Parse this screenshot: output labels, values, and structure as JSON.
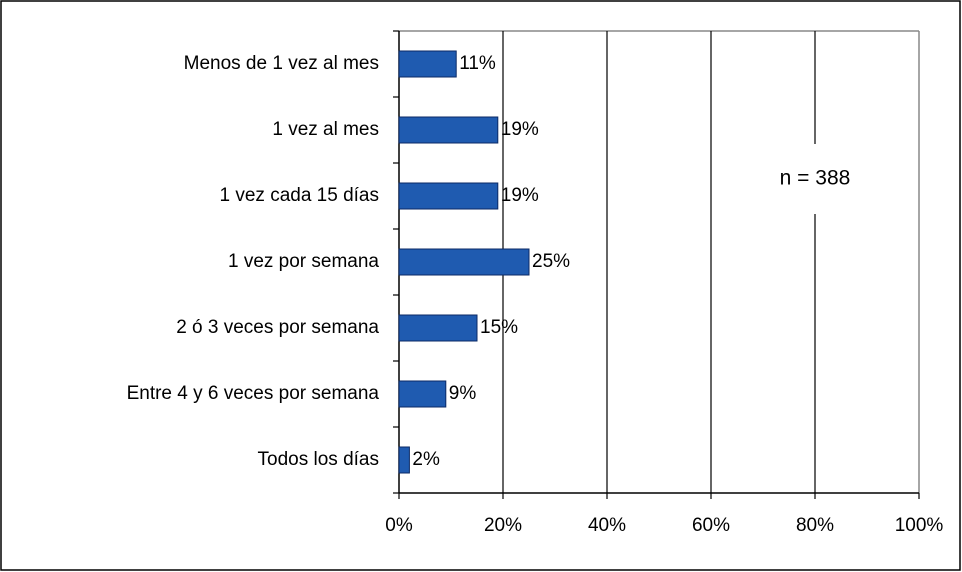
{
  "chart_data": {
    "type": "bar",
    "orientation": "horizontal",
    "categories": [
      "Menos de 1 vez al mes",
      "1 vez al mes",
      "1 vez cada 15 días",
      "1 vez por semana",
      "2 ó 3 veces por semana",
      "Entre 4 y 6 veces por semana",
      "Todos los días"
    ],
    "values": [
      11,
      19,
      19,
      25,
      15,
      9,
      2
    ],
    "value_labels": [
      "11%",
      "19%",
      "19%",
      "25%",
      "15%",
      "9%",
      "2%"
    ],
    "color": "#1f5bb0",
    "xlim": [
      0,
      100
    ],
    "xticks": [
      {
        "value": 0,
        "label": "0%"
      },
      {
        "value": 20,
        "label": "20%"
      },
      {
        "value": 40,
        "label": "40%"
      },
      {
        "value": 60,
        "label": "60%"
      },
      {
        "value": 80,
        "label": "80%"
      },
      {
        "value": 100,
        "label": "100%"
      }
    ],
    "grid": true,
    "annotation": "n = 388"
  }
}
